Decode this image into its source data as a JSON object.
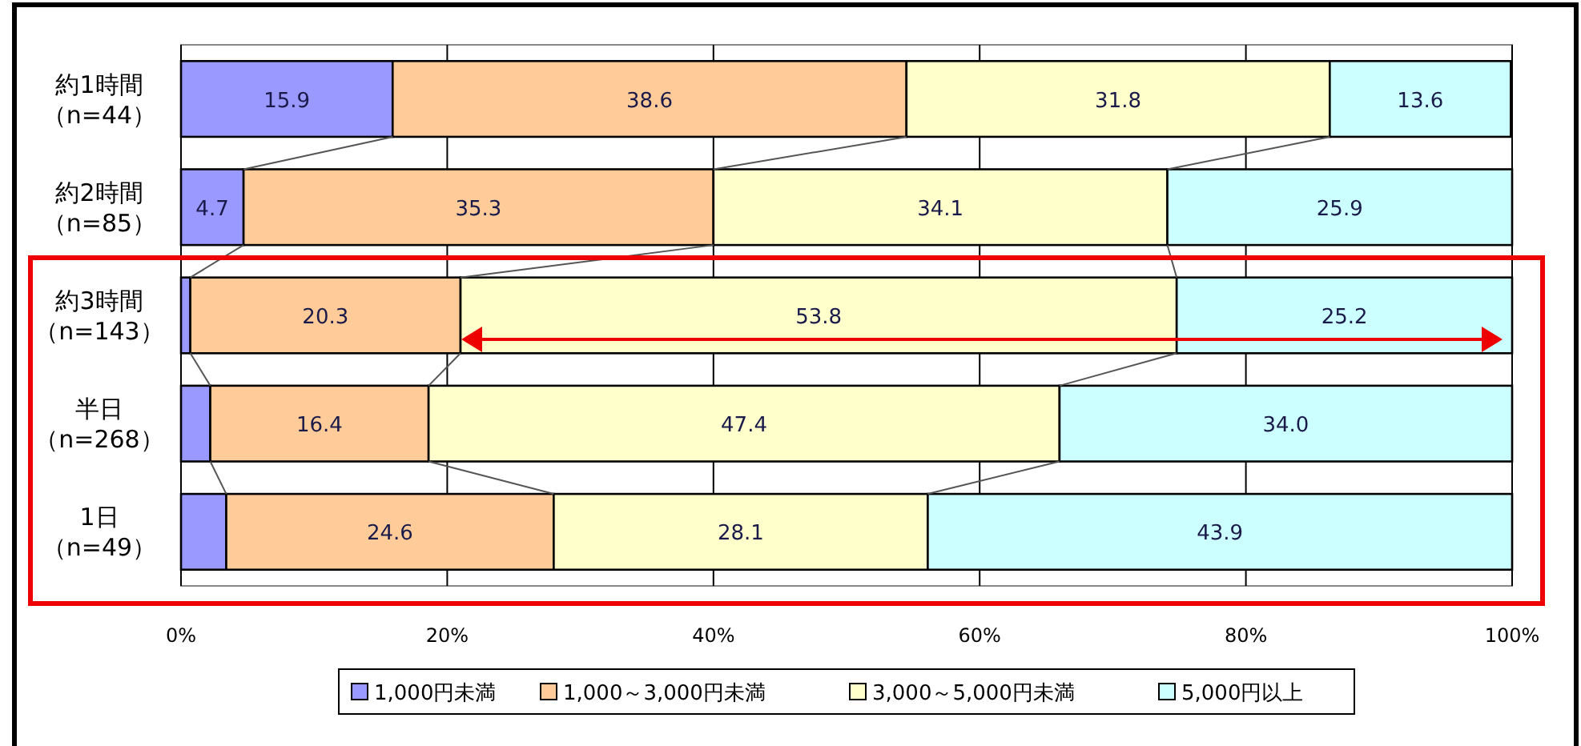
{
  "chart_data": {
    "type": "bar",
    "orientation": "horizontal",
    "stacked": true,
    "categories": [
      "約1時間（n=44）",
      "約2時間（n=85）",
      "約3時間（n=143）",
      "半日（n=268）",
      "1日（n=49）"
    ],
    "series": [
      {
        "name": "1,000円未満",
        "color": "#9999ff",
        "values": [
          15.9,
          4.7,
          0.7,
          2.2,
          3.4
        ],
        "value_labels": [
          "15.9",
          "4.7",
          null,
          null,
          null
        ]
      },
      {
        "name": "1,000～3,000円未満",
        "color": "#ffcc99",
        "values": [
          38.6,
          35.3,
          20.3,
          16.4,
          24.6
        ],
        "value_labels": [
          "38.6",
          "35.3",
          "20.3",
          "16.4",
          "24.6"
        ]
      },
      {
        "name": "3,000～5,000円未満",
        "color": "#ffffcc",
        "values": [
          31.8,
          34.1,
          53.8,
          47.4,
          28.1
        ],
        "value_labels": [
          "31.8",
          "34.1",
          "53.8",
          "47.4",
          "28.1"
        ]
      },
      {
        "name": "5,000円以上",
        "color": "#ccffff",
        "values": [
          13.6,
          25.9,
          25.2,
          34.0,
          43.9
        ],
        "value_labels": [
          "13.6",
          "25.9",
          "25.2",
          "34.0",
          "43.9"
        ]
      }
    ],
    "xlim": [
      0,
      100
    ],
    "xticks": [
      {
        "value": 0,
        "label": "0%"
      },
      {
        "value": 20,
        "label": "20%"
      },
      {
        "value": 40,
        "label": "40%"
      },
      {
        "value": 60,
        "label": "60%"
      },
      {
        "value": 80,
        "label": "80%"
      },
      {
        "value": 100,
        "label": "100%"
      }
    ],
    "grid": "x",
    "legend": "bottom"
  }
}
